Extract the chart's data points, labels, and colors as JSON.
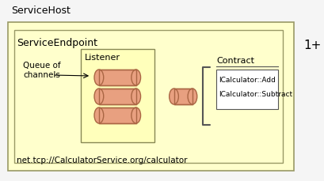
{
  "bg_color": "#f5f5f5",
  "outer_box_color": "#ffffcc",
  "outer_box_edge": "#999966",
  "inner_box_color": "#ffffaa",
  "inner_box_edge": "#999966",
  "listener_box_color": "#ffffaa",
  "listener_box_edge": "#888855",
  "contract_box_color": "#ffffff",
  "contract_box_edge": "#555555",
  "cylinder_face_color": "#e8a080",
  "cylinder_edge_color": "#aa6644",
  "title_outer": "ServiceHost",
  "title_inner": "ServiceEndpoint",
  "label_queue": "Queue of\nchannels",
  "label_listener": "Listener",
  "label_contract": "Contract",
  "label_address": "net.tcp://CalculatorService.org/calculator",
  "label_methods": [
    "ICalculator::Add",
    "ICalculator::Subtract"
  ],
  "label_multiplicity": "1+",
  "font_size_title": 9,
  "font_size_label": 8,
  "font_size_small": 7.5
}
